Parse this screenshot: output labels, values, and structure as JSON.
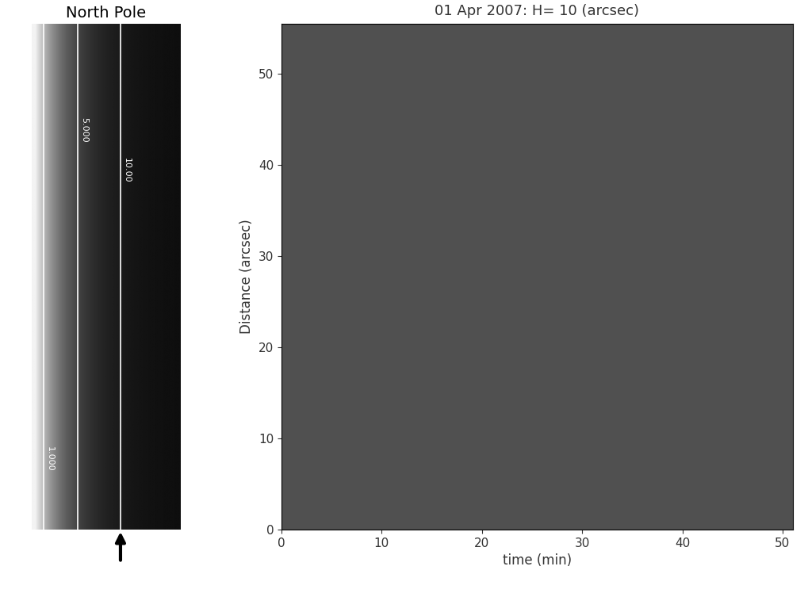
{
  "chart_data": [
    {
      "type": "image",
      "title": "North Pole",
      "xlim": [
        -0.4,
        17
      ],
      "contours": [
        1,
        5,
        10
      ],
      "contour_labels": [
        "1.000",
        "5.000",
        "10.00"
      ],
      "tick_labels": false
    },
    {
      "type": "image",
      "title": "01 Apr 2007: H= 10 (arcsec)",
      "x_label": "time (min)",
      "y_label": "Distance (arcsec)",
      "xlim": [
        0,
        51
      ],
      "ylim": [
        0,
        55.5
      ],
      "xticks": [
        0,
        10,
        20,
        30,
        40,
        50
      ],
      "yticks": [
        0,
        10,
        20,
        30,
        40,
        50
      ]
    }
  ]
}
